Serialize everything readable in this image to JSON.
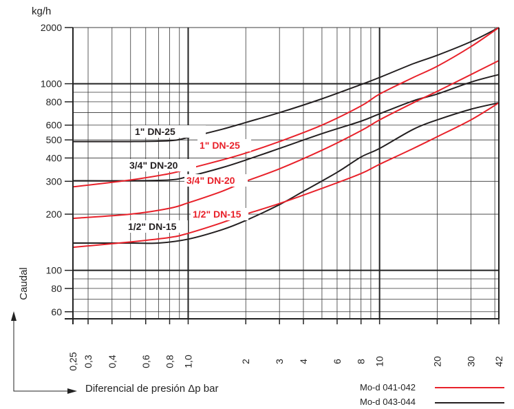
{
  "chart_data": {
    "type": "line",
    "y_unit": "kg/h",
    "ylabel": "Caudal",
    "xlabel": "Diferencial de presión Δp bar",
    "x_scale": "log",
    "y_scale": "log",
    "xlim": [
      0.25,
      42
    ],
    "ylim": [
      55,
      2000
    ],
    "x_ticks": [
      0.25,
      0.3,
      0.4,
      0.6,
      0.8,
      1.0,
      2,
      3,
      4,
      6,
      8,
      10,
      20,
      30,
      42
    ],
    "x_tick_labels": [
      "0,25",
      "0,3",
      "0,4",
      "0,6",
      "0,8",
      "1,0",
      "2",
      "3",
      "4",
      "6",
      "8",
      "10",
      "20",
      "30",
      "42"
    ],
    "y_ticks": [
      60,
      80,
      100,
      200,
      300,
      400,
      500,
      600,
      800,
      1000,
      2000
    ],
    "y_tick_labels": [
      "60",
      "80",
      "100",
      "200",
      "300",
      "400",
      "500",
      "600",
      "800",
      "1000",
      "2000"
    ],
    "grid": true,
    "colors": {
      "red": "#e8212a",
      "black": "#231f20"
    },
    "series": [
      {
        "name": "1\" DN-25",
        "group": "Mo-d 043-044",
        "color": "black",
        "x": [
          0.25,
          0.5,
          0.8,
          1.0,
          1.5,
          2,
          3,
          5,
          8,
          10,
          15,
          20,
          30,
          42
        ],
        "y": [
          490,
          490,
          495,
          515,
          570,
          620,
          700,
          830,
          990,
          1080,
          1280,
          1420,
          1680,
          2000
        ]
      },
      {
        "name": "3/4\" DN-20",
        "group": "Mo-d 043-044",
        "color": "black",
        "x": [
          0.25,
          0.5,
          0.8,
          1.0,
          1.5,
          2,
          3,
          5,
          8,
          10,
          15,
          20,
          30,
          42
        ],
        "y": [
          302,
          302,
          305,
          318,
          355,
          390,
          450,
          540,
          630,
          690,
          810,
          880,
          1020,
          1120
        ]
      },
      {
        "name": "1/2\" DN-15",
        "group": "Mo-d 043-044",
        "color": "black",
        "x": [
          0.25,
          0.5,
          0.7,
          1.0,
          1.5,
          2,
          3,
          4,
          6,
          8,
          10,
          15,
          20,
          30,
          42
        ],
        "y": [
          140,
          140,
          140,
          147,
          165,
          185,
          225,
          265,
          335,
          405,
          450,
          570,
          640,
          730,
          790
        ]
      },
      {
        "name": "1\" DN-25",
        "group": "Mo-d 041-042",
        "color": "red",
        "x": [
          0.25,
          0.5,
          0.8,
          1.0,
          1.5,
          2,
          3,
          5,
          8,
          10,
          15,
          20,
          30,
          42
        ],
        "y": [
          280,
          305,
          330,
          350,
          390,
          425,
          490,
          600,
          760,
          880,
          1080,
          1240,
          1580,
          2000
        ]
      },
      {
        "name": "3/4\" DN-20",
        "group": "Mo-d 041-042",
        "color": "red",
        "x": [
          0.25,
          0.5,
          0.8,
          1.0,
          1.5,
          2,
          3,
          5,
          8,
          10,
          15,
          20,
          30,
          42
        ],
        "y": [
          190,
          200,
          215,
          230,
          265,
          300,
          350,
          440,
          560,
          640,
          790,
          910,
          1120,
          1330
        ]
      },
      {
        "name": "1/2\" DN-15",
        "group": "Mo-d 041-042",
        "color": "red",
        "x": [
          0.25,
          0.5,
          0.8,
          1.0,
          1.5,
          2,
          3,
          5,
          8,
          10,
          15,
          20,
          30,
          42
        ],
        "y": [
          133,
          142,
          150,
          158,
          180,
          200,
          228,
          275,
          330,
          370,
          450,
          520,
          640,
          790
        ]
      }
    ],
    "series_labels": [
      {
        "text": "1\" DN-25",
        "color": "black"
      },
      {
        "text": "1\" DN-25",
        "color": "red"
      },
      {
        "text": "3/4\" DN-20",
        "color": "black"
      },
      {
        "text": "3/4\" DN-20",
        "color": "red"
      },
      {
        "text": "1/2\" DN-15",
        "color": "red"
      },
      {
        "text": "1/2\" DN-15",
        "color": "black"
      }
    ],
    "legend": {
      "placement": "bottom-right",
      "items": [
        {
          "label": "Mo-d 041-042",
          "color": "red"
        },
        {
          "label": "Mo-d 043-044",
          "color": "black"
        }
      ]
    }
  }
}
